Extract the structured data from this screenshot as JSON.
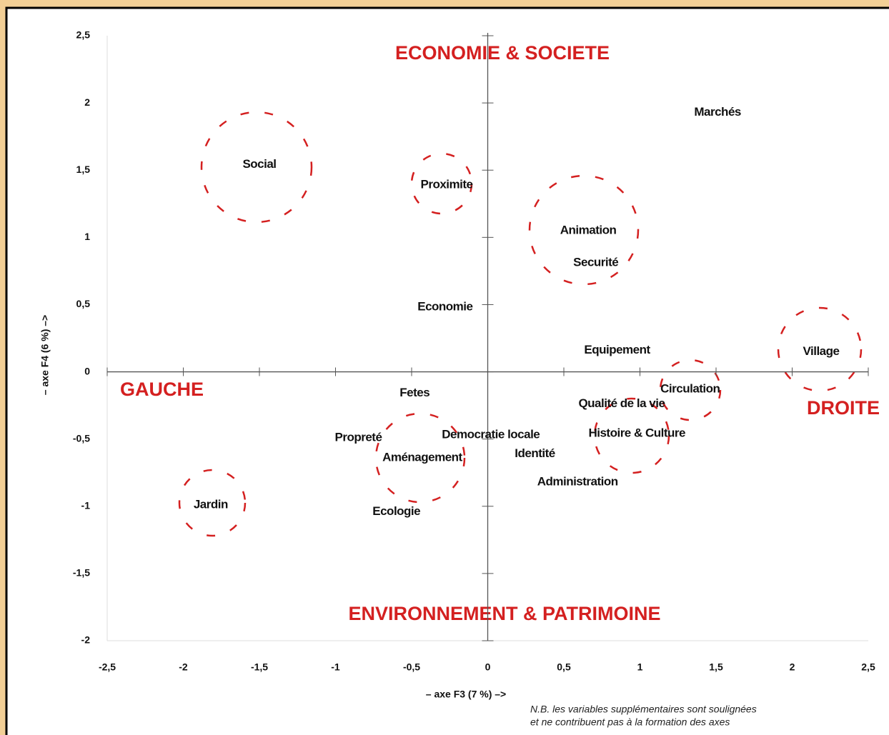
{
  "chart_data": {
    "type": "scatter",
    "xlabel": "– axe F3 (7 %) –>",
    "ylabel": "– axe F4 (6 %) –>",
    "annotations": [
      "ECONOMIE & SOCIETE",
      "GAUCHE",
      "DROITE",
      "ENVIRONNEMENT & PATRIMOINE"
    ],
    "note": [
      "N.B. les variables supplémentaires sont soulignées",
      "et ne contribuent pas à la formation des axes"
    ],
    "xlim": [
      -2.5,
      2.5
    ],
    "ylim": [
      -2,
      2.5
    ],
    "xticks": [
      {
        "value": -2.5,
        "label": "-2,5"
      },
      -2,
      {
        "value": -1.5,
        "label": "-1,5"
      },
      -1,
      {
        "value": -0.5,
        "label": "-0,5"
      },
      0,
      {
        "value": 0.5,
        "label": "0,5"
      },
      1,
      {
        "value": 1.5,
        "label": "1,5"
      },
      2,
      {
        "value": 2.5,
        "label": "2,5"
      }
    ],
    "yticks": [
      -2,
      {
        "value": -1.5,
        "label": "-1,5"
      },
      -1,
      {
        "value": -0.5,
        "label": "-0,5"
      },
      0,
      {
        "value": 0.5,
        "label": "0,5"
      },
      1,
      {
        "value": 1.5,
        "label": "1,5"
      },
      2,
      {
        "value": 2.5,
        "label": "2,5"
      }
    ],
    "color": "#000000",
    "points": [
      {
        "label": "Social",
        "x": -1.5,
        "y": 1.54
      },
      {
        "label": "Proximite",
        "x": -0.27,
        "y": 1.39
      },
      {
        "label": "Marchés",
        "x": 1.51,
        "y": 1.93
      },
      {
        "label": "Animation",
        "x": 0.66,
        "y": 1.05
      },
      {
        "label": "Securité",
        "x": 0.71,
        "y": 0.81
      },
      {
        "label": "Economie",
        "x": -0.28,
        "y": 0.48
      },
      {
        "label": "Equipement",
        "x": 0.85,
        "y": 0.16
      },
      {
        "label": "Village",
        "x": 2.19,
        "y": 0.15
      },
      {
        "label": "Circulation",
        "x": 1.33,
        "y": -0.13
      },
      {
        "label": "Qualité de la vie",
        "x": 0.88,
        "y": -0.24
      },
      {
        "label": "Fetes",
        "x": -0.48,
        "y": -0.16
      },
      {
        "label": "Histoire & Culture",
        "x": 0.98,
        "y": -0.46
      },
      {
        "label": "Propreté",
        "x": -0.85,
        "y": -0.49
      },
      {
        "label": "Democratie locale",
        "x": 0.02,
        "y": -0.47
      },
      {
        "label": "Aménagement",
        "x": -0.43,
        "y": -0.64
      },
      {
        "label": "Identité",
        "x": 0.31,
        "y": -0.61
      },
      {
        "label": "Administration",
        "x": 0.59,
        "y": -0.82
      },
      {
        "label": "Jardin",
        "x": -1.82,
        "y": -0.99
      },
      {
        "label": "Ecologie",
        "x": -0.6,
        "y": -1.04
      }
    ]
  }
}
